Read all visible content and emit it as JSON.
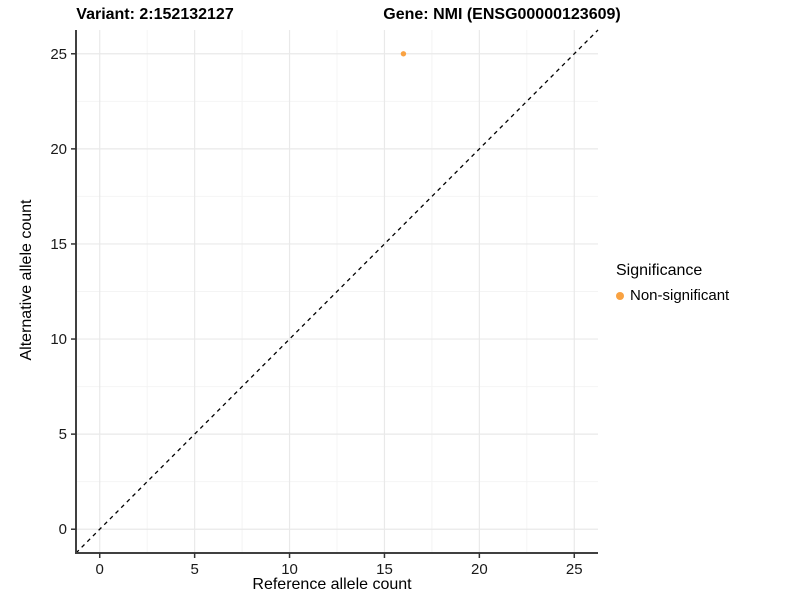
{
  "chart_data": {
    "type": "scatter",
    "titles": {
      "left": "Variant: 2:152132127",
      "right": "Gene: NMI (ENSG00000123609)"
    },
    "xlabel": "Reference allele count",
    "ylabel": "Alternative allele count",
    "xlim": [
      -1.25,
      26.25
    ],
    "ylim": [
      -1.25,
      26.25
    ],
    "xticks": [
      0,
      5,
      10,
      15,
      20,
      25
    ],
    "yticks": [
      0,
      5,
      10,
      15,
      20,
      25
    ],
    "xminor": [
      2.5,
      7.5,
      12.5,
      17.5,
      22.5
    ],
    "yminor": [
      2.5,
      7.5,
      12.5,
      17.5,
      22.5
    ],
    "grid": "major+minor",
    "reference_line": {
      "kind": "y=x",
      "style": "dashed",
      "color": "#000000"
    },
    "series": [
      {
        "name": "Non-significant",
        "color": "#F9A242",
        "points": [
          {
            "x": 16,
            "y": 25
          }
        ]
      }
    ],
    "legend": {
      "title": "Significance",
      "position": "right",
      "items": [
        {
          "label": "Non-significant",
          "color": "#F9A242"
        }
      ]
    },
    "style": {
      "grid_major_color": "#E9E9E9",
      "grid_minor_color": "#F4F4F4",
      "axis_line_color": "#404040",
      "tick_color": "#333333",
      "tick_label_color": "#1a1a1a"
    }
  }
}
